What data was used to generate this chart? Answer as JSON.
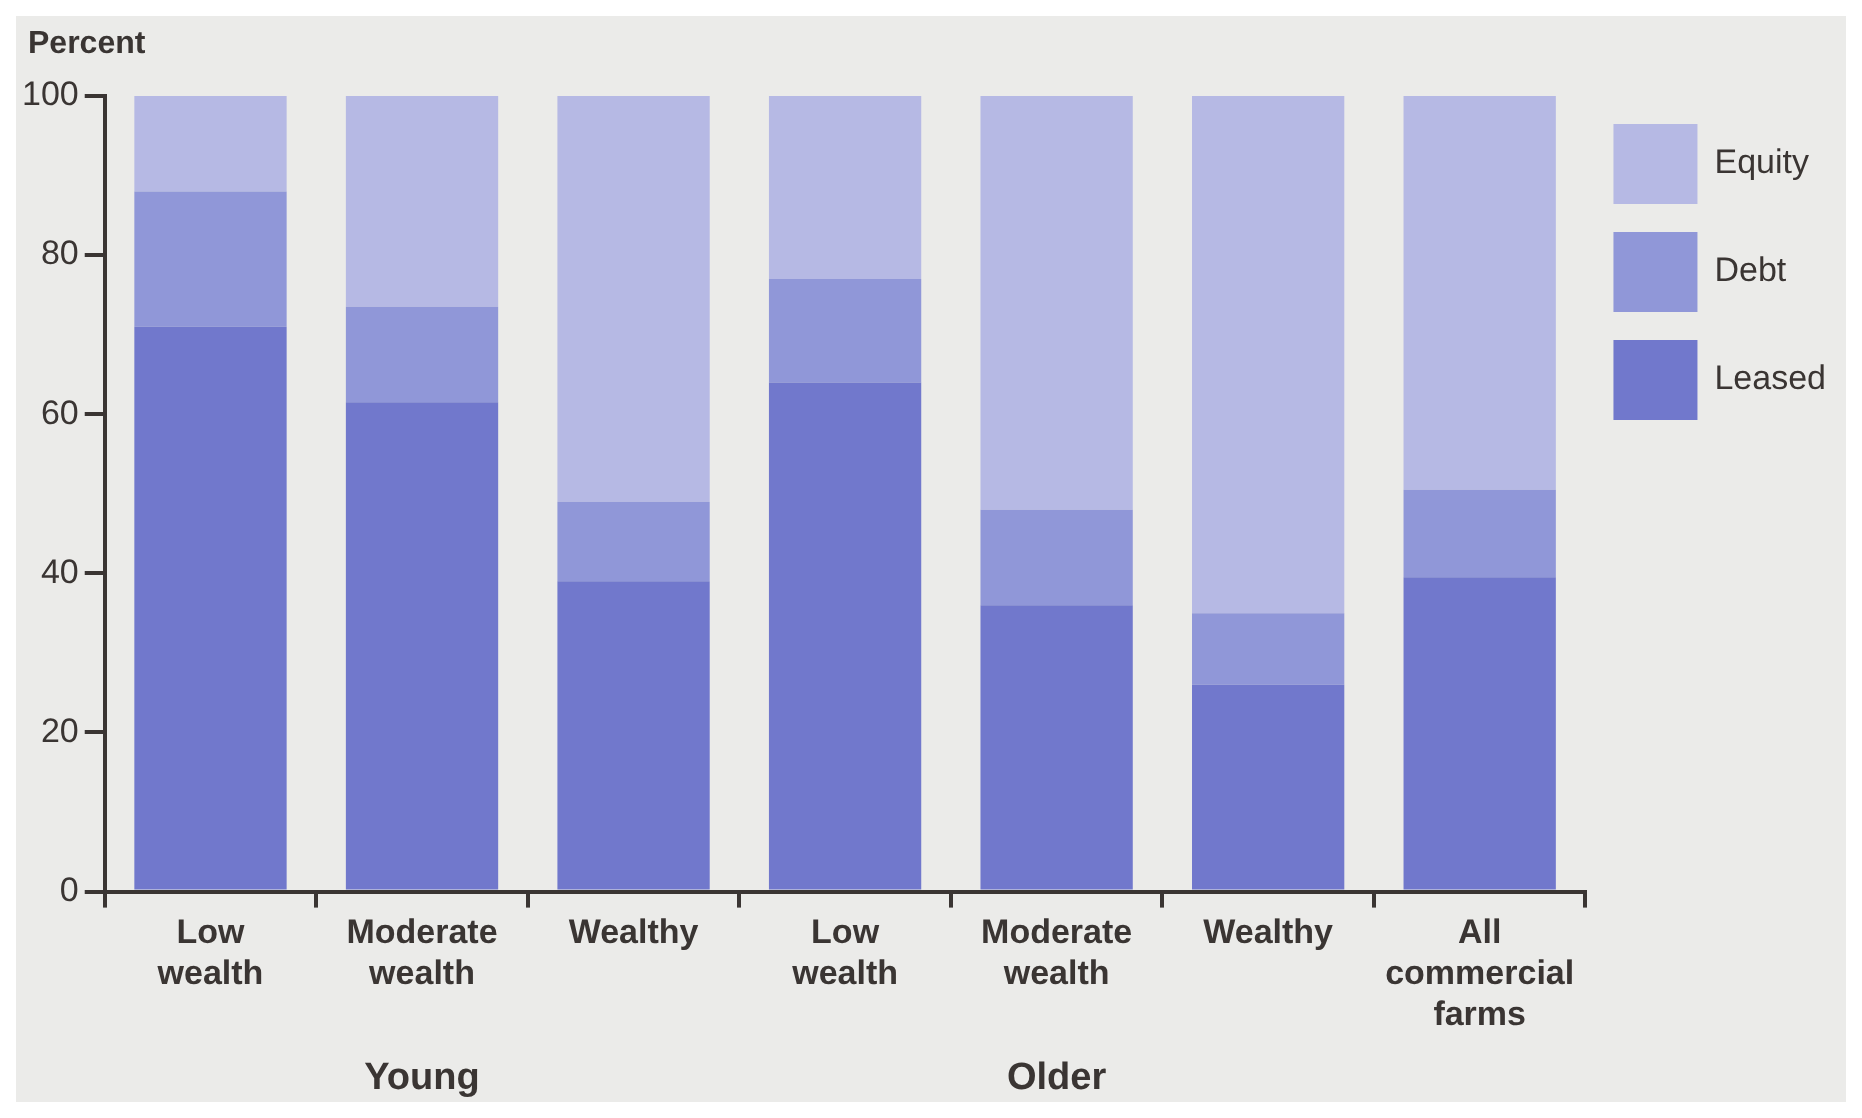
{
  "chart_data": {
    "type": "bar",
    "stacked": true,
    "ylabel": "Percent",
    "categories": [
      "Low wealth",
      "Moderate wealth",
      "Wealthy",
      "Low wealth",
      "Moderate wealth",
      "Wealthy",
      "All commercial farms"
    ],
    "series": [
      {
        "name": "Leased",
        "color": "#7178cc",
        "values": [
          71,
          61.5,
          39,
          64,
          36,
          26,
          39.5
        ]
      },
      {
        "name": "Debt",
        "color": "#9097d8",
        "values": [
          17,
          12,
          10,
          13,
          12,
          9,
          11
        ]
      },
      {
        "name": "Equity",
        "color": "#b6b9e4",
        "values": [
          12,
          26.5,
          51,
          23,
          52,
          65,
          49.5
        ]
      }
    ],
    "ylim": [
      0,
      100
    ],
    "yticks": [
      0,
      20,
      40,
      60,
      80,
      100
    ],
    "grid": false,
    "legend": "top right",
    "annotations": [
      "Young",
      "Older"
    ]
  }
}
